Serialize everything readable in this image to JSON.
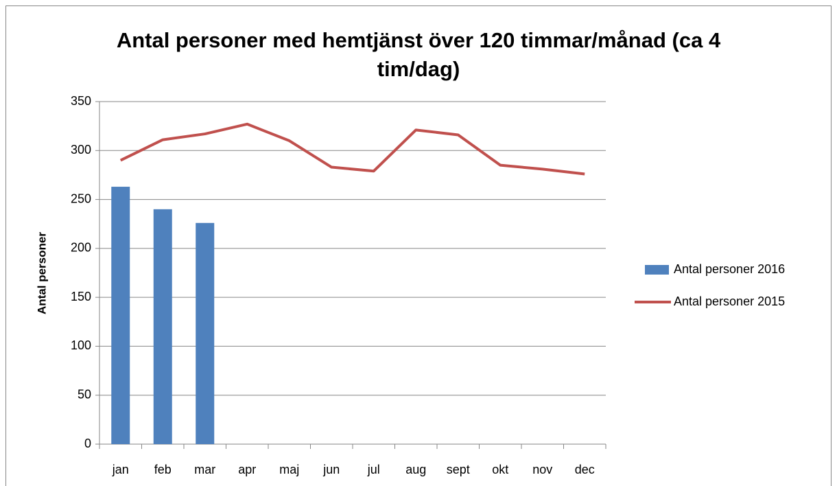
{
  "chart_data": {
    "type": "bar",
    "title": "Antal personer med hemtjänst över 120 timmar/månad (ca 4 tim/dag)",
    "y_label": "Antal personer",
    "categories": [
      "jan",
      "feb",
      "mar",
      "apr",
      "maj",
      "jun",
      "jul",
      "aug",
      "sept",
      "okt",
      "nov",
      "dec"
    ],
    "series": [
      {
        "name": "Antal personer 2016",
        "color": "#4f81bd",
        "type": "bar",
        "values": [
          263,
          240,
          226,
          null,
          null,
          null,
          null,
          null,
          null,
          null,
          null,
          null
        ]
      },
      {
        "name": "Antal personer 2015",
        "color": "#c0504d",
        "type": "line",
        "values": [
          290,
          311,
          317,
          327,
          310,
          283,
          279,
          321,
          316,
          285,
          281,
          276
        ]
      }
    ],
    "ylim": [
      0,
      350
    ],
    "yticks": [
      0,
      50,
      100,
      150,
      200,
      250,
      300,
      350
    ],
    "grid": true,
    "legend": "right"
  }
}
